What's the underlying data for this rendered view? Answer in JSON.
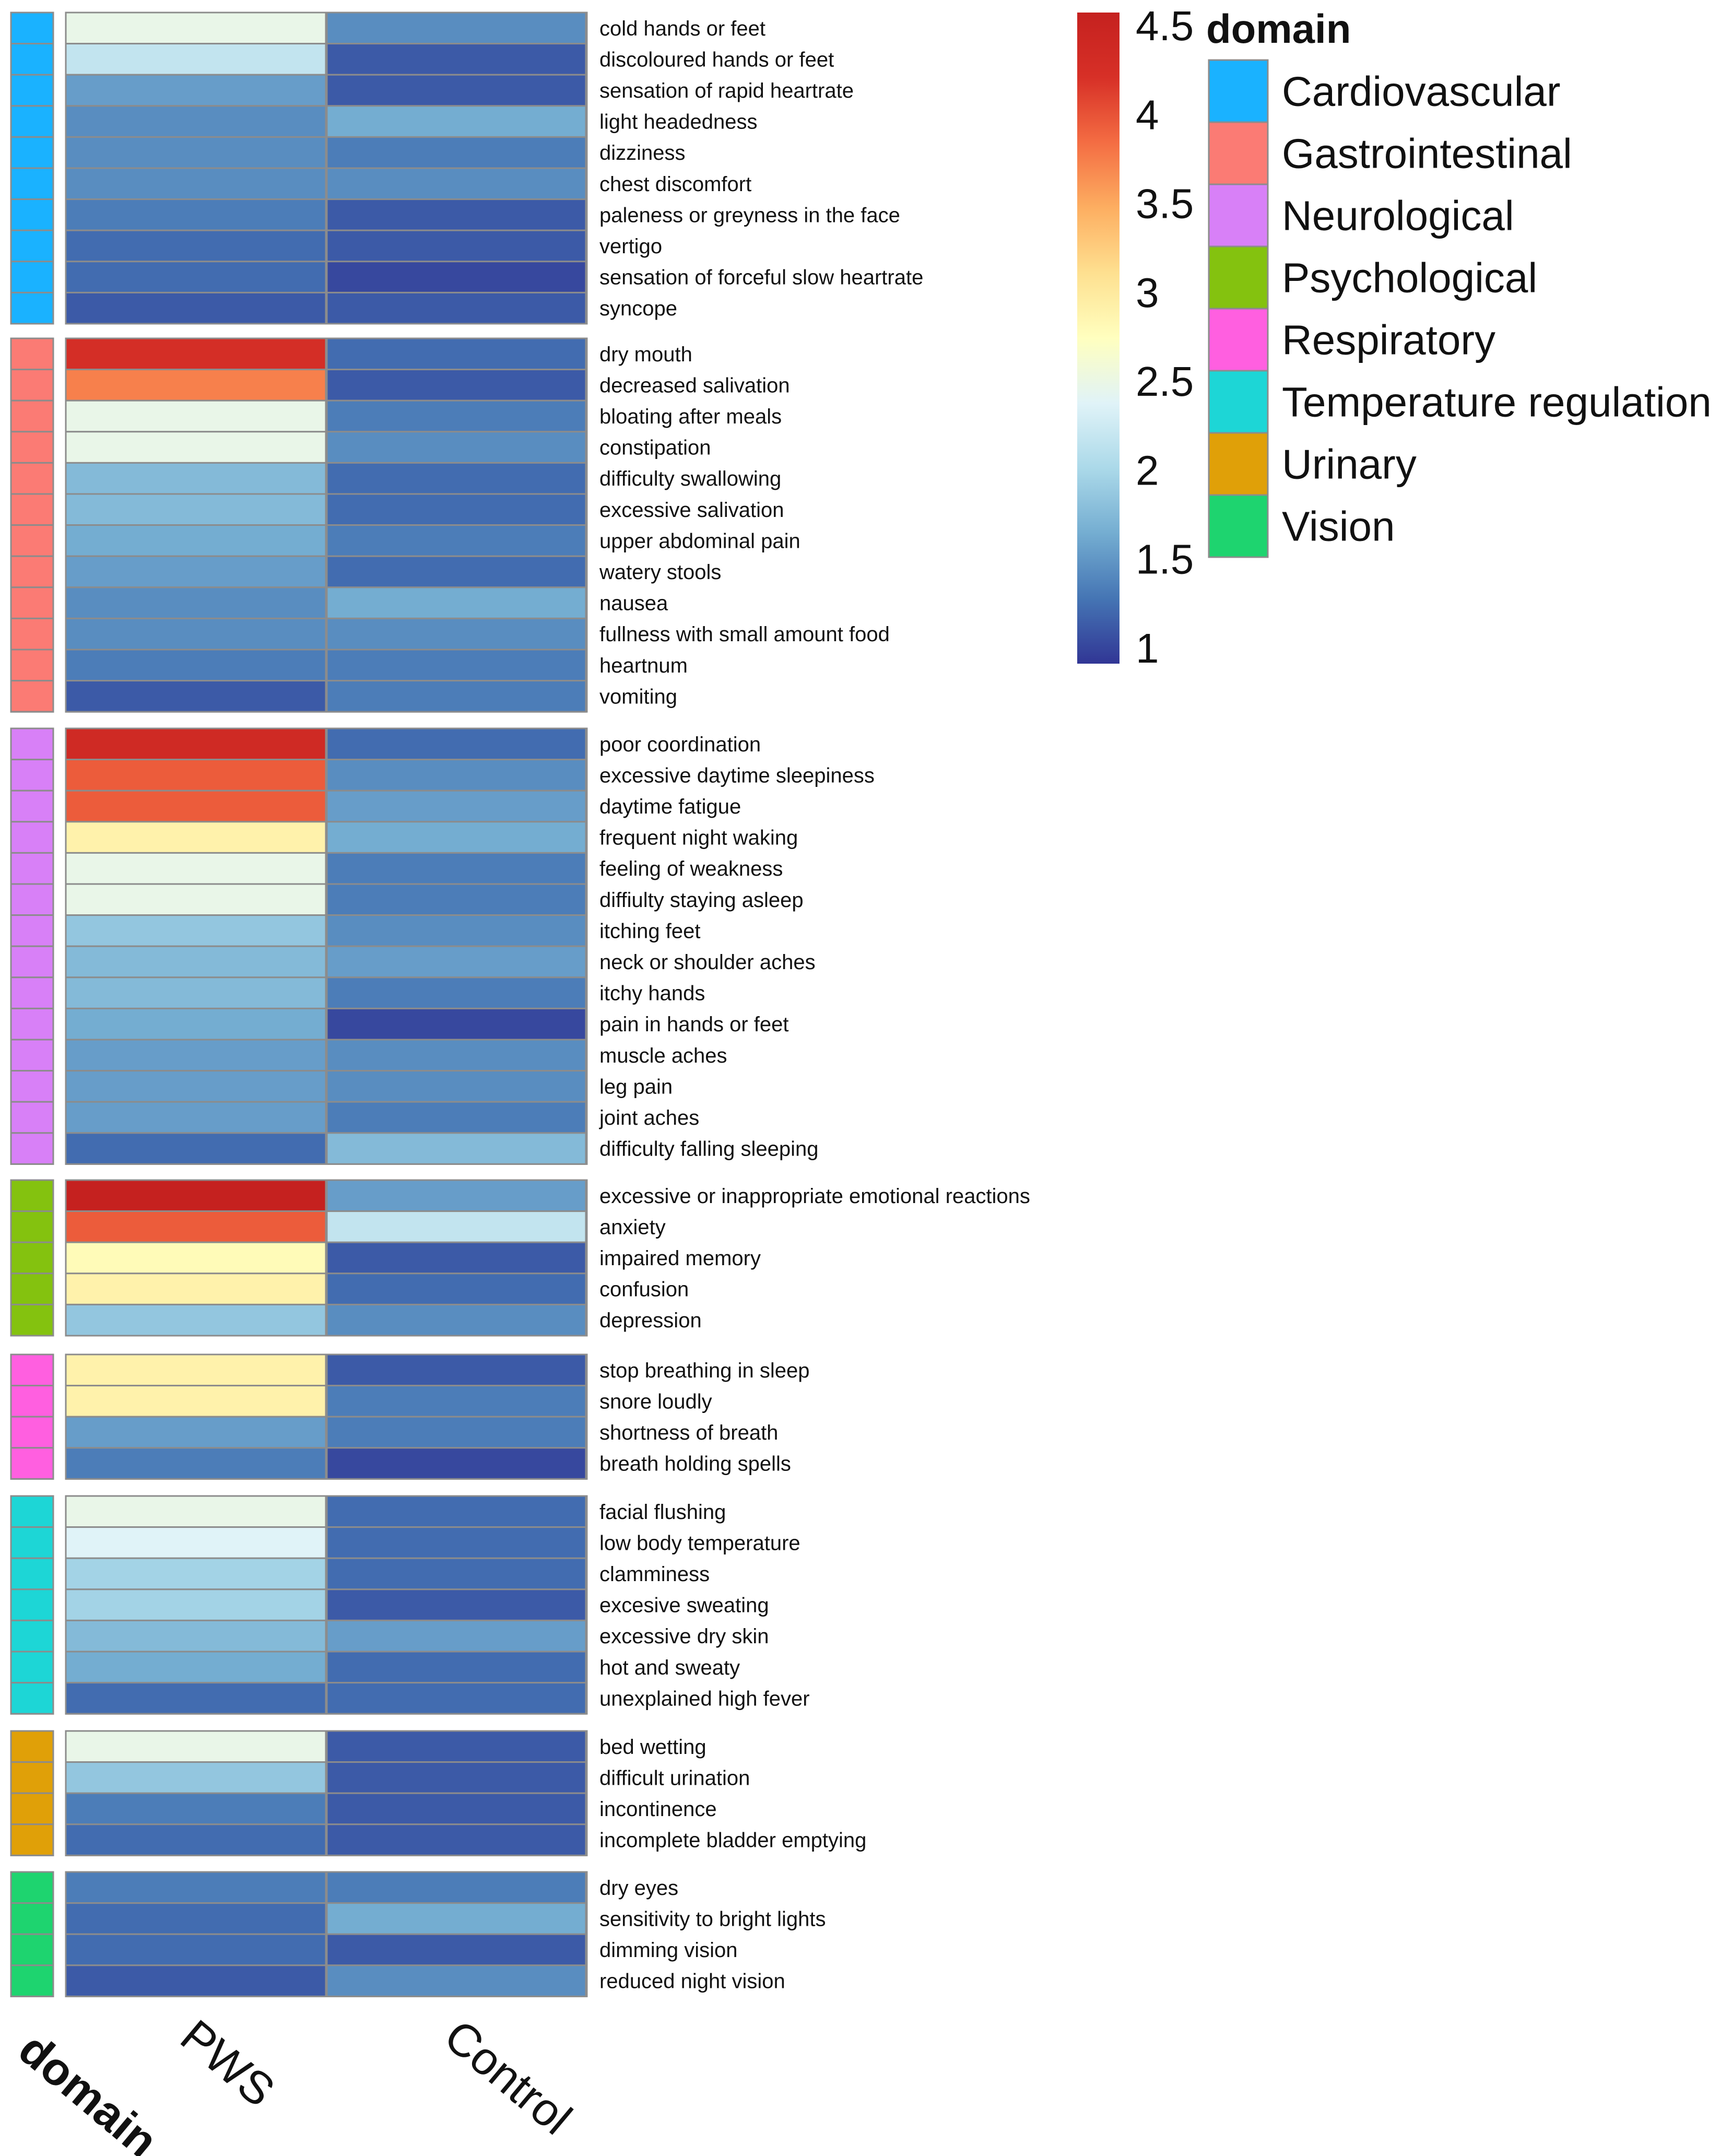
{
  "chart_data": {
    "type": "heatmap",
    "columns": [
      "PWS",
      "Control"
    ],
    "annotation_column_label": "domain",
    "color_scale": {
      "min": 1,
      "max": 4.5,
      "ticks": [
        "4.5",
        "4",
        "3.5",
        "3",
        "2.5",
        "2",
        "1.5",
        "1"
      ],
      "stops": [
        "#313695",
        "#4575b4",
        "#74add1",
        "#abd9e9",
        "#e0f3f8",
        "#ffffbf",
        "#fee090",
        "#fdae61",
        "#f46d43",
        "#d73027",
        "#c5211f"
      ]
    },
    "legend": {
      "title": "domain",
      "items": [
        {
          "label": "Cardiovascular",
          "color": "#1ab2ff"
        },
        {
          "label": "Gastrointestinal",
          "color": "#fb7b74"
        },
        {
          "label": "Neurological",
          "color": "#d880f7"
        },
        {
          "label": "Psychological",
          "color": "#84c20f"
        },
        {
          "label": "Respiratory",
          "color": "#ff5fe0"
        },
        {
          "label": "Temperature regulation",
          "color": "#1dd6d6"
        },
        {
          "label": "Urinary",
          "color": "#e0a008"
        },
        {
          "label": "Vision",
          "color": "#1ed46f"
        }
      ]
    },
    "groups": [
      {
        "domain": "Cardiovascular",
        "rows": [
          {
            "symptom": "cold hands or feet",
            "PWS": 2.5,
            "Control": 1.5
          },
          {
            "symptom": "discoloured hands or feet",
            "PWS": 2.2,
            "Control": 1.2
          },
          {
            "symptom": "sensation of rapid heartrate",
            "PWS": 1.6,
            "Control": 1.2
          },
          {
            "symptom": "light headedness",
            "PWS": 1.5,
            "Control": 1.7
          },
          {
            "symptom": "dizziness",
            "PWS": 1.5,
            "Control": 1.4
          },
          {
            "symptom": "chest discomfort",
            "PWS": 1.5,
            "Control": 1.5
          },
          {
            "symptom": "paleness or greyness in the face",
            "PWS": 1.4,
            "Control": 1.2
          },
          {
            "symptom": "vertigo",
            "PWS": 1.3,
            "Control": 1.2
          },
          {
            "symptom": "sensation of forceful slow heartrate",
            "PWS": 1.3,
            "Control": 1.1
          },
          {
            "symptom": "syncope",
            "PWS": 1.2,
            "Control": 1.2
          }
        ]
      },
      {
        "domain": "Gastrointestinal",
        "rows": [
          {
            "symptom": "dry mouth",
            "PWS": 4.2,
            "Control": 1.3
          },
          {
            "symptom": "decreased salivation",
            "PWS": 3.7,
            "Control": 1.2
          },
          {
            "symptom": "bloating after meals",
            "PWS": 2.5,
            "Control": 1.4
          },
          {
            "symptom": "constipation",
            "PWS": 2.5,
            "Control": 1.5
          },
          {
            "symptom": "difficulty swallowing",
            "PWS": 1.8,
            "Control": 1.3
          },
          {
            "symptom": "excessive salivation",
            "PWS": 1.8,
            "Control": 1.3
          },
          {
            "symptom": "upper abdominal pain",
            "PWS": 1.7,
            "Control": 1.4
          },
          {
            "symptom": "watery stools",
            "PWS": 1.6,
            "Control": 1.3
          },
          {
            "symptom": "nausea",
            "PWS": 1.5,
            "Control": 1.7
          },
          {
            "symptom": "fullness with small amount food",
            "PWS": 1.5,
            "Control": 1.5
          },
          {
            "symptom": "heartnum",
            "PWS": 1.4,
            "Control": 1.4
          },
          {
            "symptom": "vomiting",
            "PWS": 1.2,
            "Control": 1.4
          }
        ]
      },
      {
        "domain": "Neurological",
        "rows": [
          {
            "symptom": "poor coordination",
            "PWS": 4.3,
            "Control": 1.3
          },
          {
            "symptom": "excessive daytime sleepiness",
            "PWS": 3.9,
            "Control": 1.5
          },
          {
            "symptom": "daytime fatigue",
            "PWS": 3.9,
            "Control": 1.6
          },
          {
            "symptom": "frequent night waking",
            "PWS": 2.9,
            "Control": 1.7
          },
          {
            "symptom": "feeling of weakness",
            "PWS": 2.5,
            "Control": 1.4
          },
          {
            "symptom": "diffiulty staying asleep",
            "PWS": 2.5,
            "Control": 1.4
          },
          {
            "symptom": "itching feet",
            "PWS": 1.9,
            "Control": 1.5
          },
          {
            "symptom": "neck or shoulder aches",
            "PWS": 1.8,
            "Control": 1.6
          },
          {
            "symptom": "itchy hands",
            "PWS": 1.8,
            "Control": 1.4
          },
          {
            "symptom": "pain in hands or feet",
            "PWS": 1.7,
            "Control": 1.1
          },
          {
            "symptom": "muscle aches",
            "PWS": 1.6,
            "Control": 1.5
          },
          {
            "symptom": "leg pain",
            "PWS": 1.6,
            "Control": 1.5
          },
          {
            "symptom": "joint aches",
            "PWS": 1.6,
            "Control": 1.4
          },
          {
            "symptom": "difficulty falling sleeping",
            "PWS": 1.3,
            "Control": 1.8
          }
        ]
      },
      {
        "domain": "Psychological",
        "rows": [
          {
            "symptom": "excessive or inappropriate emotional reactions",
            "PWS": 4.5,
            "Control": 1.6
          },
          {
            "symptom": "anxiety",
            "PWS": 3.9,
            "Control": 2.2
          },
          {
            "symptom": "impaired memory",
            "PWS": 2.8,
            "Control": 1.2
          },
          {
            "symptom": "confusion",
            "PWS": 2.9,
            "Control": 1.3
          },
          {
            "symptom": "depression",
            "PWS": 1.9,
            "Control": 1.5
          }
        ]
      },
      {
        "domain": "Respiratory",
        "rows": [
          {
            "symptom": "stop breathing in sleep",
            "PWS": 2.9,
            "Control": 1.2
          },
          {
            "symptom": "snore loudly",
            "PWS": 2.9,
            "Control": 1.4
          },
          {
            "symptom": "shortness of breath",
            "PWS": 1.6,
            "Control": 1.4
          },
          {
            "symptom": "breath holding spells",
            "PWS": 1.4,
            "Control": 1.1
          }
        ]
      },
      {
        "domain": "Temperature regulation",
        "rows": [
          {
            "symptom": "facial flushing",
            "PWS": 2.5,
            "Control": 1.3
          },
          {
            "symptom": "low body temperature",
            "PWS": 2.4,
            "Control": 1.3
          },
          {
            "symptom": "clamminess",
            "PWS": 2.0,
            "Control": 1.3
          },
          {
            "symptom": "excesive sweating",
            "PWS": 2.0,
            "Control": 1.2
          },
          {
            "symptom": "excessive dry skin",
            "PWS": 1.8,
            "Control": 1.6
          },
          {
            "symptom": "hot and sweaty",
            "PWS": 1.7,
            "Control": 1.3
          },
          {
            "symptom": "unexplained high fever",
            "PWS": 1.3,
            "Control": 1.3
          }
        ]
      },
      {
        "domain": "Urinary",
        "rows": [
          {
            "symptom": "bed wetting",
            "PWS": 2.5,
            "Control": 1.2
          },
          {
            "symptom": "difficult urination",
            "PWS": 1.9,
            "Control": 1.2
          },
          {
            "symptom": "incontinence",
            "PWS": 1.4,
            "Control": 1.2
          },
          {
            "symptom": "incomplete bladder emptying",
            "PWS": 1.3,
            "Control": 1.2
          }
        ]
      },
      {
        "domain": "Vision",
        "rows": [
          {
            "symptom": "dry eyes",
            "PWS": 1.4,
            "Control": 1.4
          },
          {
            "symptom": "sensitivity to bright lights",
            "PWS": 1.3,
            "Control": 1.7
          },
          {
            "symptom": "dimming vision",
            "PWS": 1.3,
            "Control": 1.2
          },
          {
            "symptom": "reduced night vision",
            "PWS": 1.2,
            "Control": 1.5
          }
        ]
      }
    ]
  }
}
